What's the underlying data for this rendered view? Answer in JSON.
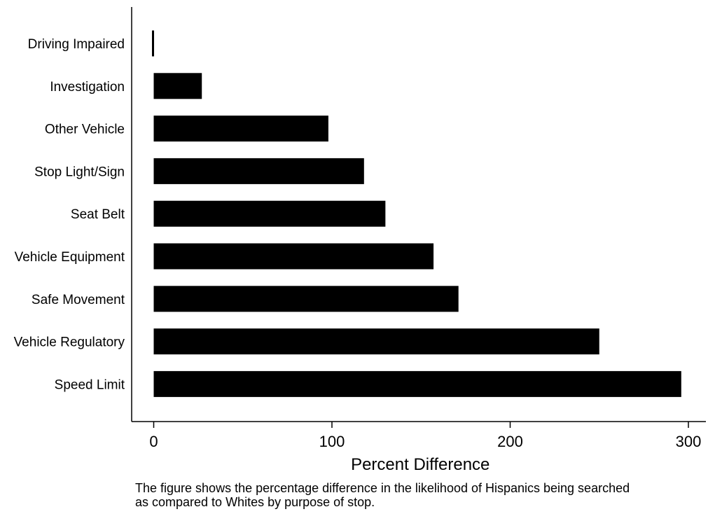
{
  "chart_data": {
    "type": "bar",
    "orientation": "horizontal",
    "categories": [
      "Driving Impaired",
      "Investigation",
      "Other Vehicle",
      "Stop Light/Sign",
      "Seat Belt",
      "Vehicle Equipment",
      "Safe Movement",
      "Vehicle Regulatory",
      "Speed Limit"
    ],
    "values": [
      -1,
      27,
      98,
      118,
      130,
      157,
      171,
      250,
      296
    ],
    "title": "",
    "xlabel": "Percent Difference",
    "ylabel": "",
    "xlim": [
      -12,
      312
    ],
    "xticks": [
      0,
      100,
      200,
      300
    ],
    "xtick_labels": [
      "0",
      "100",
      "200",
      "300"
    ],
    "bar_color": "#000000",
    "grid": false,
    "legend": "none"
  },
  "caption": {
    "line1": "The figure shows the percentage difference in the likelihood of Hispanics being searched",
    "line2": "as compared to Whites by purpose of stop."
  }
}
